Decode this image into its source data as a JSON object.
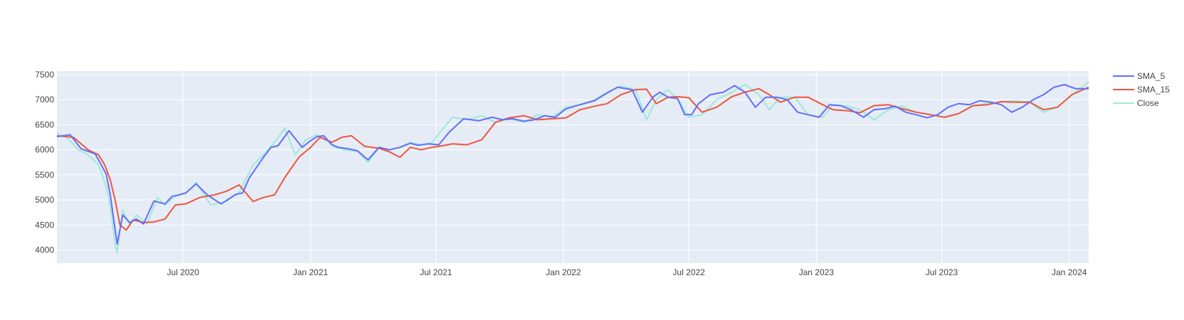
{
  "chart_data": {
    "type": "line",
    "title": "",
    "xlabel": "",
    "ylabel": "",
    "ylim": [
      3740,
      7570
    ],
    "xlim": [
      "2020-01-01",
      "2024-01-29"
    ],
    "grid": true,
    "legend_position": "top-right",
    "y_ticks": [
      4000,
      4500,
      5000,
      5500,
      6000,
      6500,
      7000,
      7500
    ],
    "x_ticks": [
      {
        "date": "2020-07-01",
        "label": "Jul 2020"
      },
      {
        "date": "2021-01-01",
        "label": "Jan 2021"
      },
      {
        "date": "2021-07-01",
        "label": "Jul 2021"
      },
      {
        "date": "2022-01-01",
        "label": "Jan 2022"
      },
      {
        "date": "2022-07-01",
        "label": "Jul 2022"
      },
      {
        "date": "2023-01-01",
        "label": "Jan 2023"
      },
      {
        "date": "2023-07-01",
        "label": "Jul 2023"
      },
      {
        "date": "2024-01-01",
        "label": "Jan 2024"
      }
    ],
    "colors": {
      "plot_bg": "#e5ecf6",
      "grid": "#ffffff",
      "SMA_5": "#636efa",
      "SMA_15": "#ef553b",
      "Close": "#9fe8d6"
    },
    "series": [
      {
        "name": "SMA_5",
        "x": [
          "2020-01-01",
          "2020-01-20",
          "2020-02-05",
          "2020-02-25",
          "2020-03-05",
          "2020-03-12",
          "2020-03-18",
          "2020-03-23",
          "2020-03-28",
          "2020-04-05",
          "2020-04-15",
          "2020-04-25",
          "2020-05-05",
          "2020-05-20",
          "2020-06-05",
          "2020-06-15",
          "2020-06-25",
          "2020-07-05",
          "2020-07-20",
          "2020-08-05",
          "2020-08-25",
          "2020-09-15",
          "2020-09-25",
          "2020-10-05",
          "2020-10-15",
          "2020-10-25",
          "2020-11-05",
          "2020-11-15",
          "2020-12-01",
          "2020-12-20",
          "2021-01-01",
          "2021-01-10",
          "2021-01-20",
          "2021-02-01",
          "2021-02-10",
          "2021-02-25",
          "2021-03-10",
          "2021-03-25",
          "2021-04-10",
          "2021-04-25",
          "2021-05-10",
          "2021-05-25",
          "2021-06-05",
          "2021-06-20",
          "2021-07-05",
          "2021-07-20",
          "2021-08-10",
          "2021-09-01",
          "2021-09-20",
          "2021-10-05",
          "2021-10-20",
          "2021-11-05",
          "2021-11-20",
          "2021-12-05",
          "2021-12-20",
          "2022-01-05",
          "2022-01-25",
          "2022-02-15",
          "2022-03-01",
          "2022-03-20",
          "2022-04-10",
          "2022-04-25",
          "2022-05-10",
          "2022-05-20",
          "2022-06-01",
          "2022-06-15",
          "2022-06-25",
          "2022-07-05",
          "2022-07-15",
          "2022-08-01",
          "2022-08-20",
          "2022-09-05",
          "2022-09-20",
          "2022-10-05",
          "2022-10-20",
          "2022-11-05",
          "2022-11-20",
          "2022-12-05",
          "2022-12-20",
          "2023-01-05",
          "2023-01-20",
          "2023-02-05",
          "2023-02-20",
          "2023-03-10",
          "2023-03-25",
          "2023-04-10",
          "2023-04-25",
          "2023-05-10",
          "2023-05-25",
          "2023-06-10",
          "2023-06-25",
          "2023-07-10",
          "2023-07-25",
          "2023-08-10",
          "2023-08-25",
          "2023-09-10",
          "2023-09-25",
          "2023-10-10",
          "2023-10-25",
          "2023-11-10",
          "2023-11-25",
          "2023-12-10",
          "2023-12-25",
          "2024-01-10",
          "2024-01-29"
        ],
        "values": [
          6260,
          6300,
          6020,
          5920,
          5700,
          5520,
          5100,
          4600,
          4120,
          4700,
          4550,
          4620,
          4520,
          4980,
          4920,
          5070,
          5100,
          5140,
          5320,
          5100,
          4920,
          5110,
          5140,
          5450,
          5650,
          5850,
          6050,
          6080,
          6380,
          6050,
          6180,
          6260,
          6280,
          6100,
          6050,
          6020,
          5980,
          5800,
          6050,
          6000,
          6050,
          6130,
          6090,
          6120,
          6100,
          6350,
          6620,
          6580,
          6650,
          6600,
          6620,
          6570,
          6600,
          6680,
          6650,
          6820,
          6900,
          6980,
          7100,
          7250,
          7200,
          6750,
          7050,
          7150,
          7050,
          7020,
          6700,
          6700,
          6920,
          7100,
          7150,
          7280,
          7150,
          6850,
          7050,
          7050,
          7000,
          6750,
          6700,
          6650,
          6900,
          6880,
          6800,
          6650,
          6800,
          6820,
          6870,
          6750,
          6700,
          6640,
          6700,
          6850,
          6920,
          6900,
          6980,
          6950,
          6900,
          6750,
          6850,
          7000,
          7100,
          7250,
          7300,
          7220,
          7220
        ]
      },
      {
        "name": "SMA_15",
        "x": [
          "2020-01-01",
          "2020-01-25",
          "2020-02-15",
          "2020-03-01",
          "2020-03-10",
          "2020-03-18",
          "2020-03-25",
          "2020-04-01",
          "2020-04-10",
          "2020-04-20",
          "2020-05-05",
          "2020-05-20",
          "2020-06-05",
          "2020-06-20",
          "2020-07-05",
          "2020-07-25",
          "2020-08-15",
          "2020-09-01",
          "2020-09-20",
          "2020-10-10",
          "2020-10-25",
          "2020-11-10",
          "2020-11-25",
          "2020-12-15",
          "2021-01-01",
          "2021-01-15",
          "2021-02-01",
          "2021-02-15",
          "2021-03-01",
          "2021-03-20",
          "2021-04-10",
          "2021-04-25",
          "2021-05-10",
          "2021-05-25",
          "2021-06-10",
          "2021-06-25",
          "2021-07-10",
          "2021-07-25",
          "2021-08-15",
          "2021-09-05",
          "2021-09-25",
          "2021-10-15",
          "2021-11-05",
          "2021-11-25",
          "2021-12-15",
          "2022-01-05",
          "2022-01-25",
          "2022-02-15",
          "2022-03-05",
          "2022-03-25",
          "2022-04-15",
          "2022-05-01",
          "2022-05-15",
          "2022-06-01",
          "2022-06-15",
          "2022-07-01",
          "2022-07-20",
          "2022-08-10",
          "2022-09-01",
          "2022-09-20",
          "2022-10-10",
          "2022-10-25",
          "2022-11-10",
          "2022-12-01",
          "2022-12-20",
          "2023-01-10",
          "2023-01-25",
          "2023-02-15",
          "2023-03-05",
          "2023-03-25",
          "2023-04-15",
          "2023-05-05",
          "2023-05-25",
          "2023-06-15",
          "2023-07-05",
          "2023-07-25",
          "2023-08-15",
          "2023-09-05",
          "2023-09-25",
          "2023-10-15",
          "2023-11-05",
          "2023-11-25",
          "2023-12-15",
          "2024-01-05",
          "2024-01-29"
        ],
        "values": [
          6280,
          6250,
          6000,
          5900,
          5700,
          5400,
          5000,
          4500,
          4400,
          4600,
          4550,
          4560,
          4620,
          4900,
          4920,
          5050,
          5100,
          5170,
          5300,
          4970,
          5050,
          5100,
          5450,
          5850,
          6050,
          6250,
          6150,
          6250,
          6280,
          6070,
          6030,
          5960,
          5850,
          6050,
          6000,
          6050,
          6080,
          6120,
          6100,
          6200,
          6550,
          6640,
          6680,
          6600,
          6620,
          6640,
          6800,
          6870,
          6920,
          7100,
          7200,
          7210,
          6920,
          7050,
          7060,
          7040,
          6750,
          6850,
          7060,
          7150,
          7220,
          7100,
          6950,
          7050,
          7050,
          6900,
          6800,
          6780,
          6740,
          6880,
          6900,
          6820,
          6750,
          6700,
          6650,
          6720,
          6880,
          6900,
          6960,
          6950,
          6950,
          6800,
          6850,
          7100,
          7250
        ]
      },
      {
        "name": "Close",
        "x": [
          "2020-01-01",
          "2020-01-15",
          "2020-02-01",
          "2020-02-15",
          "2020-03-01",
          "2020-03-10",
          "2020-03-15",
          "2020-03-20",
          "2020-03-25",
          "2020-03-28",
          "2020-04-05",
          "2020-04-15",
          "2020-04-25",
          "2020-05-10",
          "2020-05-25",
          "2020-06-05",
          "2020-06-20",
          "2020-07-05",
          "2020-07-20",
          "2020-08-10",
          "2020-09-01",
          "2020-09-20",
          "2020-10-01",
          "2020-10-10",
          "2020-10-25",
          "2020-11-10",
          "2020-11-25",
          "2020-12-10",
          "2020-12-25",
          "2021-01-10",
          "2021-01-20",
          "2021-02-05",
          "2021-02-20",
          "2021-03-10",
          "2021-03-25",
          "2021-04-10",
          "2021-04-25",
          "2021-05-10",
          "2021-05-25",
          "2021-06-10",
          "2021-06-25",
          "2021-07-10",
          "2021-07-25",
          "2021-08-15",
          "2021-09-05",
          "2021-09-25",
          "2021-10-15",
          "2021-11-05",
          "2021-11-25",
          "2021-12-15",
          "2022-01-05",
          "2022-01-25",
          "2022-02-15",
          "2022-03-05",
          "2022-03-25",
          "2022-04-15",
          "2022-05-01",
          "2022-05-15",
          "2022-06-01",
          "2022-06-15",
          "2022-07-01",
          "2022-07-20",
          "2022-08-10",
          "2022-09-01",
          "2022-09-20",
          "2022-10-10",
          "2022-10-25",
          "2022-11-10",
          "2022-12-01",
          "2022-12-20",
          "2023-01-10",
          "2023-01-25",
          "2023-02-15",
          "2023-03-05",
          "2023-03-25",
          "2023-04-15",
          "2023-05-05",
          "2023-05-25",
          "2023-06-15",
          "2023-07-05",
          "2023-07-25",
          "2023-08-15",
          "2023-09-05",
          "2023-09-25",
          "2023-10-15",
          "2023-11-05",
          "2023-11-25",
          "2023-12-15",
          "2024-01-05",
          "2024-01-29"
        ],
        "values": [
          6330,
          6250,
          6000,
          5900,
          5700,
          5350,
          5100,
          4700,
          4100,
          3950,
          4800,
          4500,
          4700,
          4520,
          5050,
          4900,
          5080,
          5130,
          5350,
          4900,
          4970,
          5150,
          5450,
          5700,
          5900,
          6150,
          6430,
          5900,
          6200,
          6300,
          6230,
          6050,
          6000,
          5970,
          5750,
          6050,
          6000,
          6050,
          6150,
          6100,
          6140,
          6400,
          6650,
          6600,
          6680,
          6550,
          6620,
          6550,
          6700,
          6650,
          6850,
          6900,
          7000,
          7150,
          7270,
          7200,
          6600,
          7000,
          7200,
          7000,
          6650,
          6700,
          7000,
          7150,
          7300,
          7100,
          6800,
          7050,
          7050,
          6700,
          6650,
          6900,
          6870,
          6800,
          6600,
          6800,
          6870,
          6750,
          6700,
          6650,
          6720,
          6880,
          6920,
          6960,
          6980,
          6950,
          6750,
          6850,
          7100,
          7350
        ]
      }
    ]
  }
}
